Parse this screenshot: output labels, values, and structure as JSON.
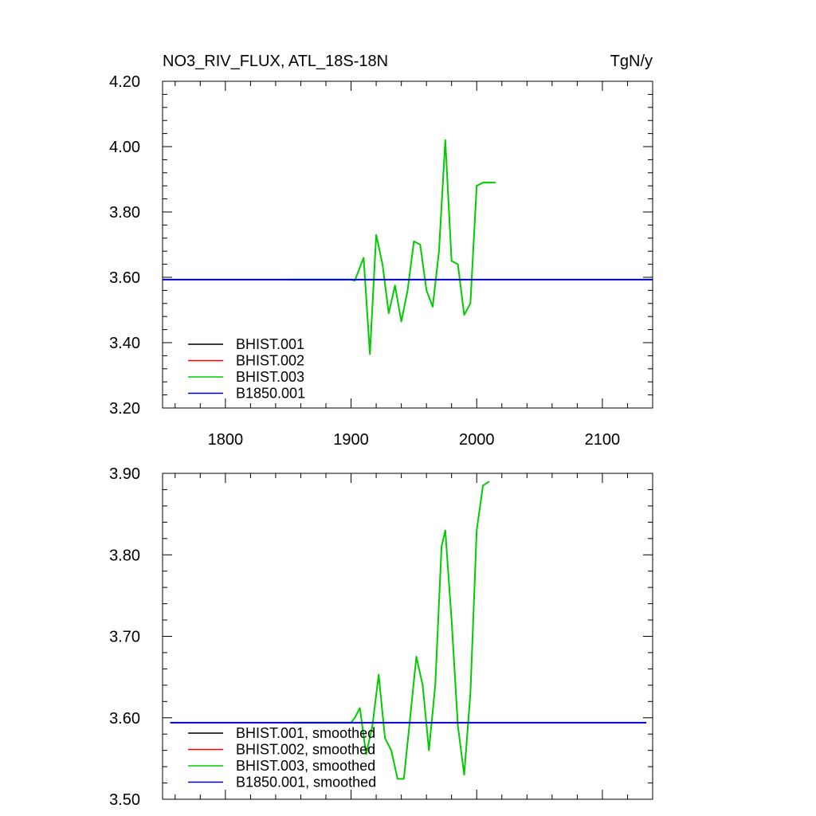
{
  "chart_data": [
    {
      "type": "line",
      "title": "NO3_RIV_FLUX, ATL_18S-18N",
      "units": "TgN/y",
      "xlim": [
        1750,
        2140
      ],
      "ylim": [
        3.2,
        4.2
      ],
      "xticks": [
        1800,
        1900,
        2000,
        2100
      ],
      "xtick_labels": [
        "1800",
        "1900",
        "2000",
        "2100"
      ],
      "yticks": [
        3.2,
        3.4,
        3.6,
        3.8,
        4.0,
        4.2
      ],
      "ytick_labels": [
        "3.20",
        "3.40",
        "3.60",
        "3.80",
        "4.00",
        "4.20"
      ],
      "legend_position": "bottom-left",
      "series": [
        {
          "name": "BHIST.001",
          "color": "#000000",
          "x": [],
          "y": []
        },
        {
          "name": "BHIST.002",
          "color": "#ff0000",
          "x": [],
          "y": []
        },
        {
          "name": "BHIST.003",
          "color": "#00cc00",
          "x": [
            1850,
            1860,
            1870,
            1880,
            1890,
            1900,
            1903,
            1910,
            1915,
            1920,
            1925,
            1930,
            1935,
            1940,
            1945,
            1950,
            1955,
            1960,
            1965,
            1970,
            1975,
            1980,
            1985,
            1990,
            1995,
            2000,
            2005,
            2010,
            2015
          ],
          "y": [
            3.593,
            3.593,
            3.593,
            3.593,
            3.593,
            3.593,
            3.59,
            3.66,
            3.365,
            3.73,
            3.64,
            3.49,
            3.575,
            3.465,
            3.56,
            3.71,
            3.7,
            3.56,
            3.51,
            3.68,
            4.02,
            3.65,
            3.64,
            3.485,
            3.52,
            3.88,
            3.89,
            3.89,
            3.89
          ]
        },
        {
          "name": "B1850.001",
          "color": "#0000cc",
          "x": [
            1750,
            2140
          ],
          "y": [
            3.593,
            3.593
          ]
        }
      ]
    },
    {
      "type": "line",
      "xlim": [
        1750,
        2140
      ],
      "ylim": [
        3.5,
        3.9
      ],
      "xticks": [
        1800,
        1900,
        2000,
        2100
      ],
      "xtick_labels": [],
      "yticks": [
        3.5,
        3.6,
        3.7,
        3.8,
        3.9
      ],
      "ytick_labels": [
        "3.50",
        "3.60",
        "3.70",
        "3.80",
        "3.90"
      ],
      "legend_position": "bottom-left",
      "series": [
        {
          "name": "BHIST.001, smoothed",
          "color": "#000000",
          "x": [],
          "y": []
        },
        {
          "name": "BHIST.002, smoothed",
          "color": "#ff0000",
          "x": [],
          "y": []
        },
        {
          "name": "BHIST.003, smoothed",
          "color": "#00cc00",
          "x": [
            1855,
            1870,
            1885,
            1900,
            1903,
            1907,
            1912,
            1917,
            1922,
            1927,
            1932,
            1937,
            1942,
            1947,
            1952,
            1957,
            1962,
            1967,
            1972,
            1975,
            1980,
            1985,
            1990,
            1995,
            2000,
            2005,
            2010
          ],
          "y": [
            3.594,
            3.594,
            3.594,
            3.594,
            3.6,
            3.612,
            3.555,
            3.59,
            3.653,
            3.575,
            3.56,
            3.525,
            3.525,
            3.6,
            3.675,
            3.64,
            3.56,
            3.64,
            3.81,
            3.83,
            3.72,
            3.59,
            3.53,
            3.63,
            3.83,
            3.885,
            3.89
          ]
        },
        {
          "name": "B1850.001, smoothed",
          "color": "#0000cc",
          "x": [
            1756,
            2135
          ],
          "y": [
            3.594,
            3.594
          ]
        }
      ]
    }
  ]
}
